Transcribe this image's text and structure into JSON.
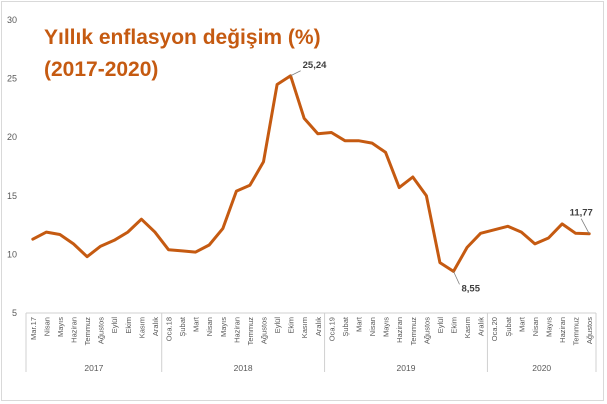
{
  "chart_data": {
    "type": "line",
    "title_lines": [
      "Yıllık enflasyon değişim (%)",
      "(2017-2020)"
    ],
    "xlabel": "",
    "ylabel": "",
    "ylim": [
      5,
      30
    ],
    "yticks": [
      5,
      10,
      15,
      20,
      25,
      30
    ],
    "grid": false,
    "line_color": "#c55a11",
    "categories": [
      "Mar.17",
      "Nisan",
      "Mayıs",
      "Haziran",
      "Temmuz",
      "Ağustos",
      "Eylül",
      "Ekim",
      "Kasım",
      "Aralık",
      "Oca.18",
      "Şubat",
      "Mart",
      "Nisan",
      "Mayıs",
      "Haziran",
      "Temmuz",
      "Ağustos",
      "Eylül",
      "Ekim",
      "Kasım",
      "Aralık",
      "Oca.19",
      "Şubat",
      "Mart",
      "Nisan",
      "Mayıs",
      "Haziran",
      "Temmuz",
      "Ağustos",
      "Eylül",
      "Ekim",
      "Kasım",
      "Aralık",
      "Oca.20",
      "Şubat",
      "Mart",
      "Nisan",
      "Mayıs",
      "Haziran",
      "Temmuz",
      "Ağustos"
    ],
    "values": [
      11.3,
      11.9,
      11.7,
      10.9,
      9.8,
      10.7,
      11.2,
      11.9,
      13.0,
      11.9,
      10.4,
      10.3,
      10.2,
      10.8,
      12.2,
      15.4,
      15.9,
      17.9,
      24.5,
      25.24,
      21.6,
      20.3,
      20.4,
      19.7,
      19.7,
      19.5,
      18.7,
      15.7,
      16.6,
      15.0,
      9.3,
      8.55,
      10.6,
      11.8,
      12.1,
      12.4,
      11.9,
      10.9,
      11.4,
      12.6,
      11.8,
      11.77
    ],
    "data_labels": [
      {
        "index": 19,
        "text": "25,24"
      },
      {
        "index": 31,
        "text": "8,55"
      },
      {
        "index": 41,
        "text": "11,77"
      }
    ],
    "year_groups": [
      {
        "label": "2017",
        "start": 0,
        "end": 9
      },
      {
        "label": "2018",
        "start": 10,
        "end": 21
      },
      {
        "label": "2019",
        "start": 22,
        "end": 33
      },
      {
        "label": "2020",
        "start": 34,
        "end": 41
      }
    ]
  }
}
